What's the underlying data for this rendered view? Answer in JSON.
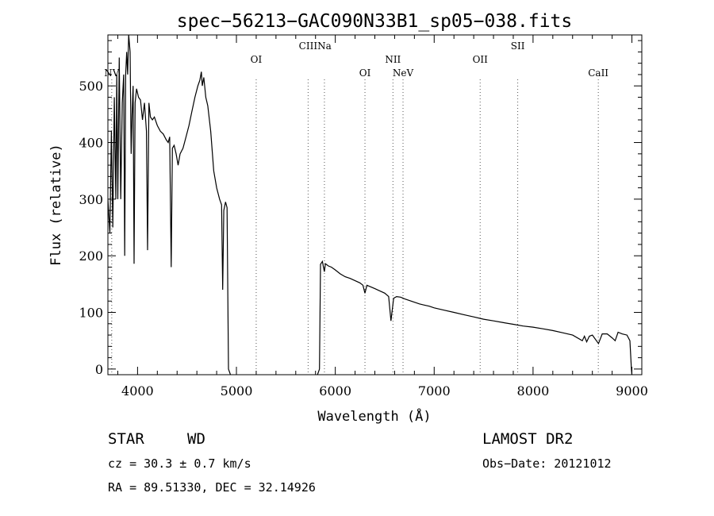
{
  "chart_data": {
    "type": "line",
    "title": "spec−56213−GAC090N33B1_sp05−038.fits",
    "xlabel": "Wavelength (Å)",
    "ylabel": "Flux (relative)",
    "xlim": [
      3700,
      9100
    ],
    "ylim": [
      -10,
      590
    ],
    "xticks": [
      4000,
      5000,
      6000,
      7000,
      8000,
      9000
    ],
    "yticks": [
      0,
      100,
      200,
      300,
      400,
      500
    ],
    "series": [
      {
        "color": "#000000",
        "points": [
          [
            3700,
            300
          ],
          [
            3720,
            240
          ],
          [
            3735,
            420
          ],
          [
            3750,
            250
          ],
          [
            3765,
            480
          ],
          [
            3780,
            300
          ],
          [
            3790,
            520
          ],
          [
            3800,
            300
          ],
          [
            3815,
            550
          ],
          [
            3830,
            300
          ],
          [
            3845,
            470
          ],
          [
            3860,
            520
          ],
          [
            3870,
            200
          ],
          [
            3880,
            520
          ],
          [
            3890,
            560
          ],
          [
            3900,
            520
          ],
          [
            3910,
            590
          ],
          [
            3925,
            560
          ],
          [
            3935,
            380
          ],
          [
            3945,
            450
          ],
          [
            3955,
            500
          ],
          [
            3965,
            186
          ],
          [
            3975,
            470
          ],
          [
            3990,
            495
          ],
          [
            4010,
            480
          ],
          [
            4030,
            475
          ],
          [
            4050,
            440
          ],
          [
            4070,
            470
          ],
          [
            4090,
            420
          ],
          [
            4101,
            210
          ],
          [
            4115,
            470
          ],
          [
            4130,
            445
          ],
          [
            4150,
            440
          ],
          [
            4170,
            445
          ],
          [
            4200,
            430
          ],
          [
            4230,
            420
          ],
          [
            4260,
            415
          ],
          [
            4290,
            405
          ],
          [
            4310,
            400
          ],
          [
            4325,
            410
          ],
          [
            4340,
            180
          ],
          [
            4352,
            390
          ],
          [
            4370,
            395
          ],
          [
            4390,
            380
          ],
          [
            4410,
            360
          ],
          [
            4430,
            380
          ],
          [
            4460,
            390
          ],
          [
            4490,
            410
          ],
          [
            4520,
            430
          ],
          [
            4550,
            455
          ],
          [
            4580,
            480
          ],
          [
            4610,
            500
          ],
          [
            4630,
            510
          ],
          [
            4645,
            525
          ],
          [
            4655,
            500
          ],
          [
            4670,
            515
          ],
          [
            4690,
            480
          ],
          [
            4710,
            465
          ],
          [
            4740,
            420
          ],
          [
            4770,
            350
          ],
          [
            4800,
            320
          ],
          [
            4830,
            300
          ],
          [
            4850,
            290
          ],
          [
            4861,
            140
          ],
          [
            4872,
            280
          ],
          [
            4890,
            295
          ],
          [
            4905,
            285
          ],
          [
            4920,
            0
          ],
          [
            4940,
            -10
          ]
        ]
      },
      {
        "color": "#000000",
        "points": [
          [
            5820,
            -10
          ],
          [
            5840,
            0
          ],
          [
            5850,
            185
          ],
          [
            5870,
            190
          ],
          [
            5880,
            180
          ],
          [
            5890,
            172
          ],
          [
            5900,
            186
          ],
          [
            5930,
            182
          ],
          [
            5960,
            180
          ],
          [
            6000,
            175
          ],
          [
            6050,
            168
          ],
          [
            6100,
            163
          ],
          [
            6150,
            160
          ],
          [
            6200,
            156
          ],
          [
            6250,
            152
          ],
          [
            6280,
            148
          ],
          [
            6300,
            134
          ],
          [
            6320,
            148
          ],
          [
            6360,
            145
          ],
          [
            6400,
            142
          ],
          [
            6450,
            138
          ],
          [
            6500,
            134
          ],
          [
            6540,
            128
          ],
          [
            6563,
            85
          ],
          [
            6590,
            125
          ],
          [
            6620,
            128
          ],
          [
            6660,
            127
          ],
          [
            6700,
            124
          ],
          [
            6750,
            121
          ],
          [
            6800,
            118
          ],
          [
            6850,
            115
          ],
          [
            6900,
            113
          ],
          [
            6950,
            111
          ],
          [
            7000,
            108
          ],
          [
            7100,
            104
          ],
          [
            7200,
            100
          ],
          [
            7300,
            96
          ],
          [
            7400,
            92
          ],
          [
            7500,
            88
          ],
          [
            7600,
            85
          ],
          [
            7700,
            82
          ],
          [
            7800,
            79
          ],
          [
            7900,
            76
          ],
          [
            8000,
            74
          ],
          [
            8100,
            71
          ],
          [
            8200,
            68
          ],
          [
            8300,
            64
          ],
          [
            8400,
            60
          ],
          [
            8498,
            50
          ],
          [
            8520,
            58
          ],
          [
            8542,
            48
          ],
          [
            8570,
            58
          ],
          [
            8600,
            60
          ],
          [
            8662,
            45
          ],
          [
            8700,
            62
          ],
          [
            8750,
            62
          ],
          [
            8800,
            55
          ],
          [
            8830,
            50
          ],
          [
            8860,
            65
          ],
          [
            8900,
            62
          ],
          [
            8950,
            60
          ],
          [
            8980,
            50
          ],
          [
            8995,
            0
          ],
          [
            9000,
            -10
          ]
        ]
      }
    ],
    "annotations": [
      {
        "label": "NV",
        "x": 3739,
        "row": 3
      },
      {
        "label": "OI",
        "x": 5200,
        "row": 2
      },
      {
        "label": "CIII",
        "x": 5725,
        "row": 1
      },
      {
        "label": "Na",
        "x": 5890,
        "row": 1
      },
      {
        "label": "OI",
        "x": 6300,
        "row": 3
      },
      {
        "label": "NII",
        "x": 6583,
        "row": 2
      },
      {
        "label": "NeV",
        "x": 6685,
        "row": 3
      },
      {
        "label": "OII",
        "x": 7465,
        "row": 2
      },
      {
        "label": "SII",
        "x": 7845,
        "row": 1
      },
      {
        "label": "CaII",
        "x": 8660,
        "row": 3
      }
    ]
  },
  "footer": {
    "object_class": "STAR",
    "subclass": "WD",
    "survey": "LAMOST DR2",
    "redshift": "cz = 30.3 ± 0.7 km/s",
    "obs_date": "Obs−Date: 20121012",
    "coords": "RA =  89.51330, DEC =  32.14926"
  }
}
